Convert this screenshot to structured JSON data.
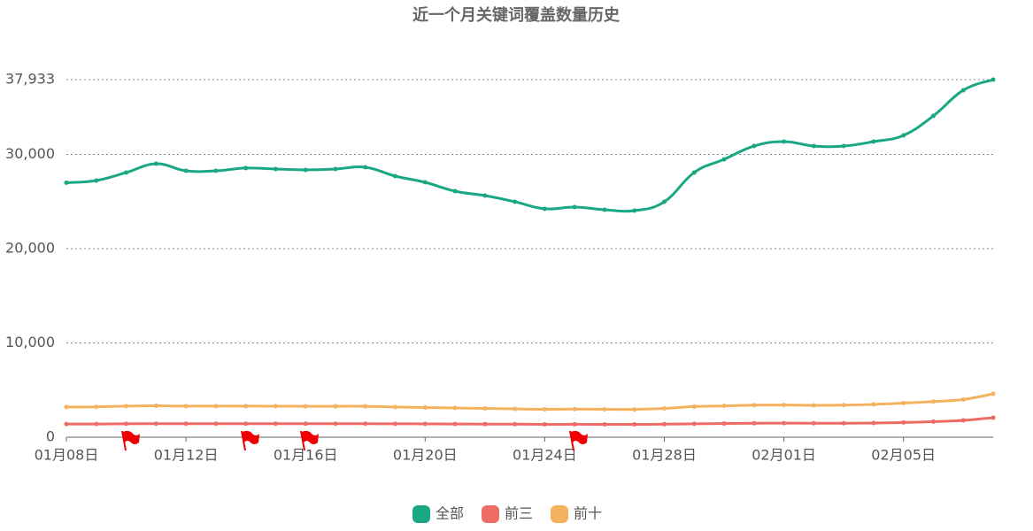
{
  "chart_data": {
    "type": "line",
    "title": "近一个月关键词覆盖数量历史",
    "categories": [
      "01月08日",
      null,
      null,
      null,
      "01月12日",
      null,
      null,
      null,
      "01月16日",
      null,
      null,
      null,
      "01月20日",
      null,
      null,
      null,
      "01月24日",
      null,
      null,
      null,
      "01月28日",
      null,
      null,
      null,
      "02月01日",
      null,
      null,
      null,
      "02月05日",
      null,
      null,
      null
    ],
    "series": [
      {
        "name": "全部",
        "color": "#1aa784",
        "values": [
          27000,
          27230,
          28080,
          29010,
          28260,
          28260,
          28550,
          28450,
          28360,
          28450,
          28640,
          27700,
          27040,
          26100,
          25630,
          24980,
          24230,
          24410,
          24130,
          24040,
          24980,
          28080,
          29480,
          30890,
          31360,
          30890,
          30890,
          31360,
          32020,
          34090,
          36810,
          37933
        ]
      },
      {
        "name": "前三",
        "color": "#ef6b66",
        "values": [
          1400,
          1400,
          1420,
          1430,
          1430,
          1430,
          1430,
          1430,
          1430,
          1430,
          1430,
          1420,
          1410,
          1400,
          1390,
          1380,
          1360,
          1370,
          1360,
          1360,
          1380,
          1420,
          1450,
          1480,
          1490,
          1480,
          1480,
          1500,
          1560,
          1650,
          1780,
          2070
        ]
      },
      {
        "name": "前十",
        "color": "#f5b25e",
        "values": [
          3200,
          3220,
          3300,
          3330,
          3300,
          3300,
          3300,
          3290,
          3280,
          3280,
          3280,
          3200,
          3150,
          3100,
          3050,
          3000,
          2960,
          2980,
          2960,
          2950,
          3050,
          3250,
          3320,
          3400,
          3420,
          3380,
          3400,
          3480,
          3620,
          3780,
          4000,
          4600
        ]
      }
    ],
    "ylim": [
      0,
      37933
    ],
    "yticks": [
      0,
      {
        "value": 10000,
        "label": "10,000"
      },
      {
        "value": 20000,
        "label": "20,000"
      },
      {
        "value": 30000,
        "label": "30,000"
      },
      {
        "value": 37933,
        "label": "37,933"
      }
    ],
    "grid": true,
    "legend": "bottom"
  }
}
